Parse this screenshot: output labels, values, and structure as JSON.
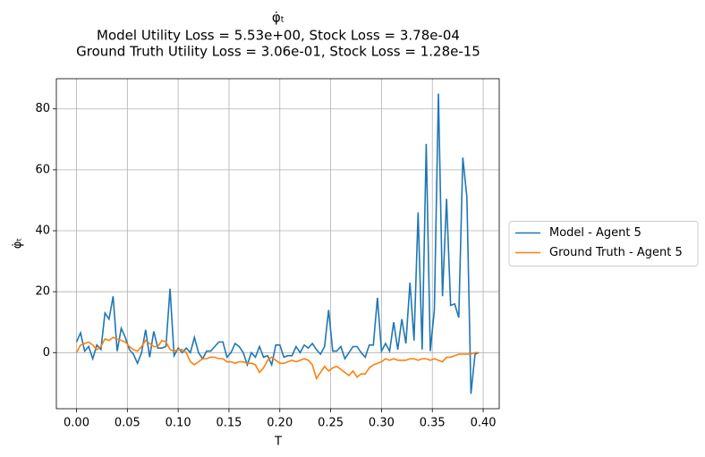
{
  "chart_data": {
    "type": "line",
    "title": "φ̇ₜ",
    "subtitle": [
      "Model Utility Loss = 5.53e+00, Stock Loss = 3.78e-04",
      "Ground Truth Utility Loss = 3.06e-01, Stock Loss = 1.28e-15"
    ],
    "x_label": "T",
    "y_label": "φ̇ₜ",
    "x": [
      0,
      0.004,
      0.008,
      0.012,
      0.016,
      0.02,
      0.024,
      0.028,
      0.032,
      0.036,
      0.04,
      0.044,
      0.048,
      0.052,
      0.056,
      0.06,
      0.064,
      0.068,
      0.072,
      0.076,
      0.08,
      0.084,
      0.088,
      0.092,
      0.096,
      0.1,
      0.104,
      0.108,
      0.112,
      0.116,
      0.12,
      0.124,
      0.128,
      0.132,
      0.136,
      0.14,
      0.144,
      0.148,
      0.152,
      0.156,
      0.16,
      0.164,
      0.168,
      0.172,
      0.176,
      0.18,
      0.184,
      0.188,
      0.192,
      0.196,
      0.2,
      0.204,
      0.208,
      0.212,
      0.216,
      0.22,
      0.224,
      0.228,
      0.232,
      0.236,
      0.24,
      0.244,
      0.248,
      0.252,
      0.256,
      0.26,
      0.264,
      0.268,
      0.272,
      0.276,
      0.28,
      0.284,
      0.288,
      0.292,
      0.296,
      0.3,
      0.304,
      0.308,
      0.312,
      0.316,
      0.32,
      0.324,
      0.328,
      0.332,
      0.336,
      0.34,
      0.344,
      0.348,
      0.352,
      0.356,
      0.36,
      0.364,
      0.368,
      0.372,
      0.376,
      0.38,
      0.384,
      0.388,
      0.392,
      0.396
    ],
    "series": [
      {
        "name": "Model - Agent 5",
        "color": "#1f77b4",
        "values": [
          3.5,
          6.5,
          0.5,
          2,
          -2,
          2.5,
          1,
          13,
          11,
          18.5,
          0.5,
          8,
          5,
          1,
          -0.5,
          -3.5,
          0,
          7.5,
          -1.5,
          7,
          1.5,
          1.5,
          2,
          21,
          -1,
          1.5,
          0,
          1.5,
          0,
          5,
          0,
          -2,
          0.5,
          0.5,
          2,
          3.5,
          3.5,
          -1.5,
          0,
          3,
          2,
          0,
          -4,
          0,
          -1.5,
          2,
          -1.5,
          -1,
          -4,
          2.5,
          2.5,
          -1.5,
          -1,
          -1,
          2,
          0,
          2.5,
          1.5,
          3,
          1,
          -0.5,
          2,
          14,
          0.5,
          0.5,
          2,
          -2,
          0,
          2,
          2,
          0,
          -1.5,
          2.5,
          2.5,
          18,
          0.5,
          3,
          0.5,
          10,
          1,
          11,
          3,
          23,
          4,
          46,
          1,
          68.5,
          0.5,
          14,
          85,
          18.5,
          50.5,
          15.5,
          16,
          11.5,
          64,
          51,
          -13.5,
          -0.5,
          0
        ]
      },
      {
        "name": "Ground Truth - Agent 5",
        "color": "#ff7f0e",
        "values": [
          0,
          2.5,
          3,
          3.5,
          2.5,
          1,
          2,
          4.5,
          4,
          5,
          4.5,
          4,
          3.5,
          2,
          1,
          0.5,
          2,
          4,
          3,
          2,
          2,
          4,
          3.5,
          1,
          0.5,
          1,
          1,
          0,
          -3,
          -4,
          -3,
          -2,
          -2,
          -1.5,
          -1.5,
          -2,
          -2,
          -3,
          -3,
          -3.5,
          -3,
          -3,
          -3.5,
          -3.5,
          -4,
          -6.5,
          -5,
          -2.5,
          -1.5,
          -2.5,
          -3.5,
          -3.5,
          -3,
          -2.5,
          -3,
          -2.5,
          -2,
          -2.5,
          -4,
          -8.5,
          -6.5,
          -4.5,
          -6,
          -5,
          -4.5,
          -5.5,
          -6.5,
          -7.5,
          -6,
          -8,
          -7,
          -7,
          -5,
          -4,
          -3.5,
          -3,
          -2,
          -2.5,
          -2,
          -2.5,
          -2.5,
          -2.5,
          -2,
          -2,
          -2.5,
          -2,
          -2,
          -2.5,
          -2,
          -2.5,
          -3,
          -1.5,
          -1.5,
          -1,
          -0.5,
          -0.5,
          -0.5,
          -0.5,
          0,
          0
        ]
      }
    ],
    "xlim": [
      -0.0198,
      0.4158
    ],
    "ylim": [
      -18.4,
      89.9
    ],
    "xticks": [
      {
        "value": 0,
        "label": "0.00"
      },
      {
        "value": 0.05,
        "label": "0.05"
      },
      {
        "value": 0.1,
        "label": "0.10"
      },
      {
        "value": 0.15,
        "label": "0.15"
      },
      {
        "value": 0.2,
        "label": "0.20"
      },
      {
        "value": 0.25,
        "label": "0.25"
      },
      {
        "value": 0.3,
        "label": "0.30"
      },
      {
        "value": 0.35,
        "label": "0.35"
      },
      {
        "value": 0.4,
        "label": "0.40"
      }
    ],
    "yticks": [
      0,
      20,
      40,
      60,
      80
    ],
    "grid": true,
    "legend": "outside-right"
  }
}
